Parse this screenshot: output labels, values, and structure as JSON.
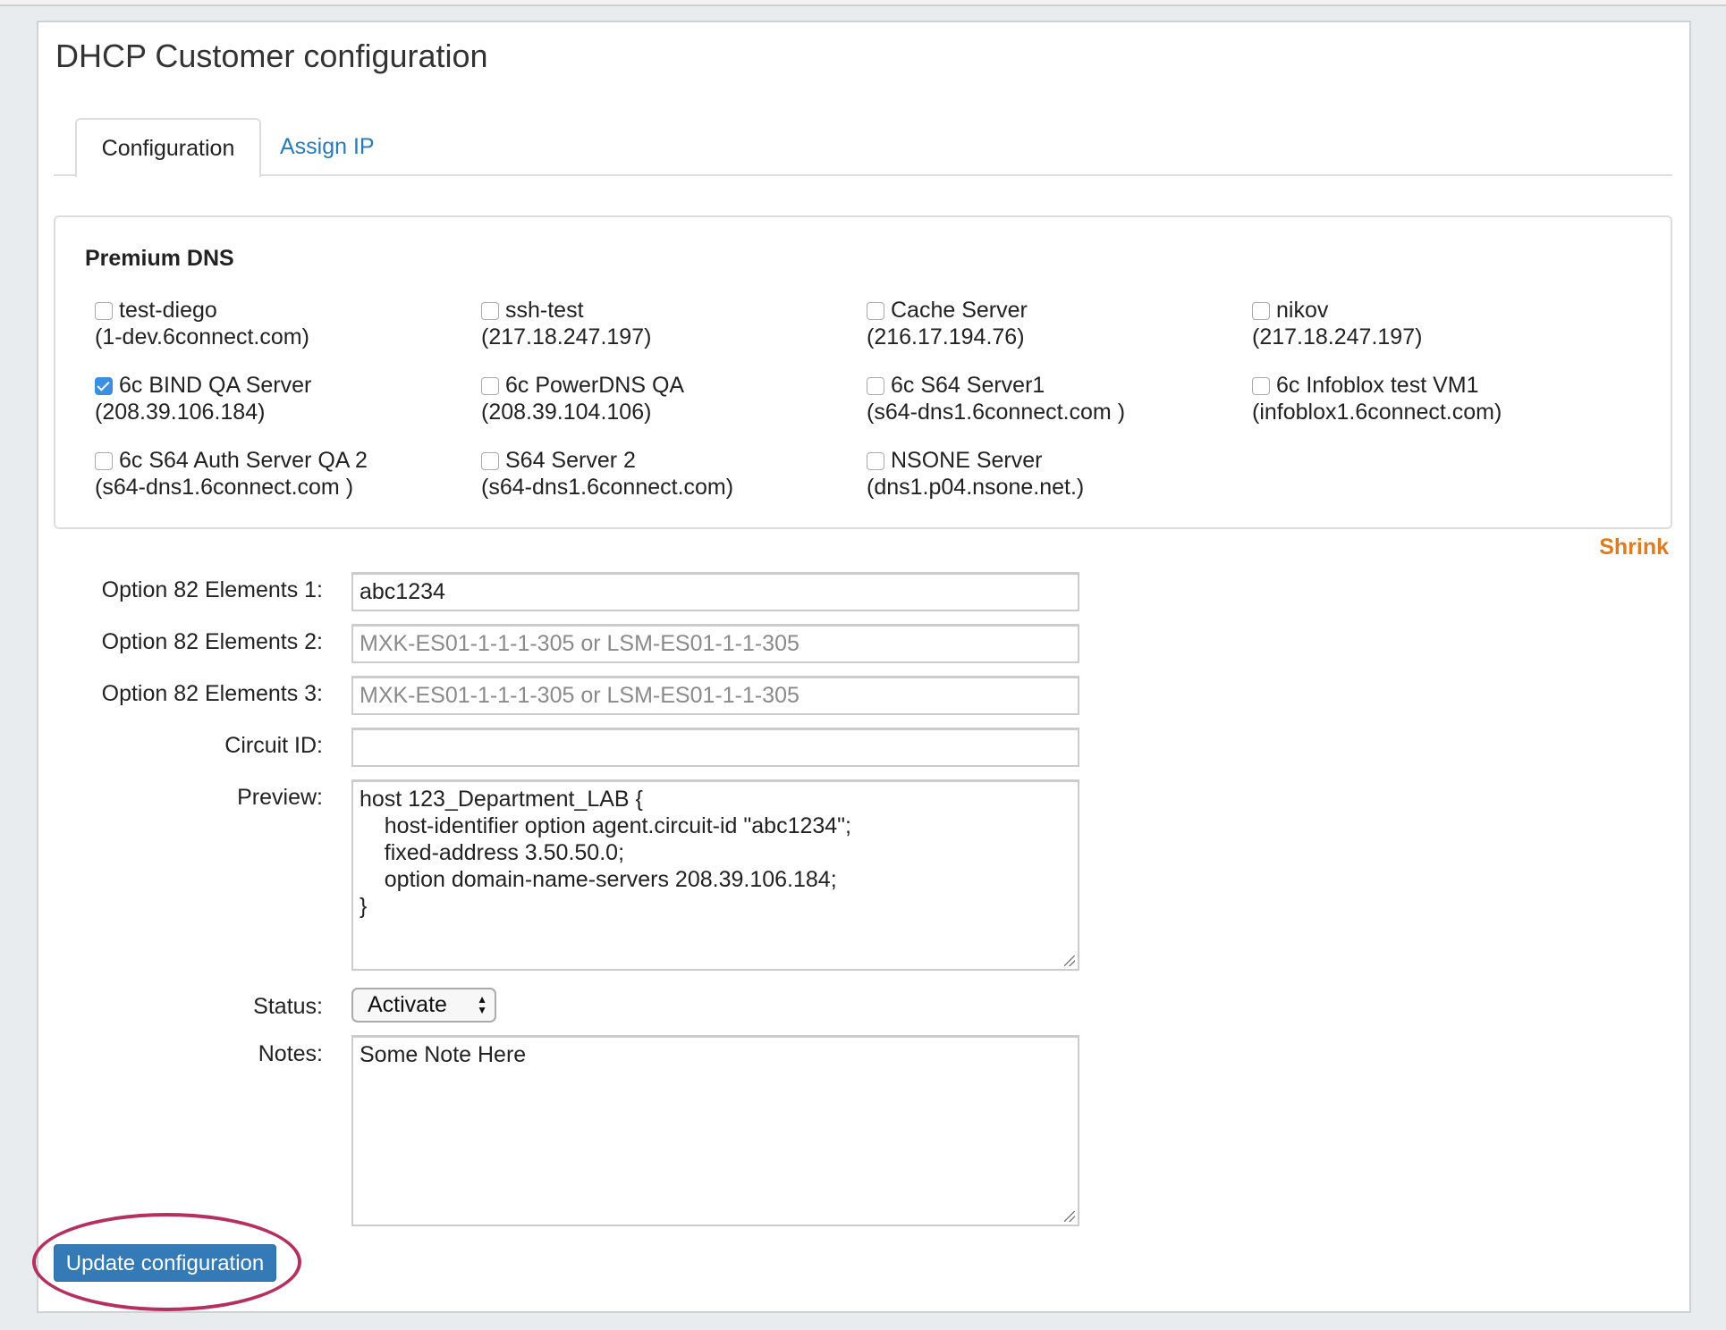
{
  "page": {
    "title": "DHCP Customer configuration"
  },
  "tabs": [
    {
      "label": "Configuration",
      "active": true
    },
    {
      "label": "Assign IP",
      "active": false
    }
  ],
  "premium_dns": {
    "title": "Premium DNS",
    "servers": [
      {
        "name": "test-diego",
        "host": "(1-dev.6connect.com)",
        "checked": false
      },
      {
        "name": "ssh-test",
        "host": "(217.18.247.197)",
        "checked": false
      },
      {
        "name": "Cache Server",
        "host": "(216.17.194.76)",
        "checked": false
      },
      {
        "name": "nikov",
        "host": "(217.18.247.197)",
        "checked": false
      },
      {
        "name": "6c BIND QA Server",
        "host": "(208.39.106.184)",
        "checked": true
      },
      {
        "name": "6c PowerDNS QA",
        "host": "(208.39.104.106)",
        "checked": false
      },
      {
        "name": "6c S64 Server1",
        "host": "(s64-dns1.6connect.com )",
        "checked": false
      },
      {
        "name": "6c Infoblox test VM1",
        "host": "(infoblox1.6connect.com)",
        "checked": false
      },
      {
        "name": "6c S64 Auth Server QA 2",
        "host": "(s64-dns1.6connect.com )",
        "checked": false
      },
      {
        "name": "S64 Server 2",
        "host": "(s64-dns1.6connect.com)",
        "checked": false
      },
      {
        "name": "NSONE Server",
        "host": "(dns1.p04.nsone.net.)",
        "checked": false
      }
    ],
    "shrink_label": "Shrink"
  },
  "form": {
    "opt82_1": {
      "label": "Option 82 Elements 1:",
      "value": "abc1234",
      "placeholder": ""
    },
    "opt82_2": {
      "label": "Option 82 Elements 2:",
      "value": "",
      "placeholder": "MXK-ES01-1-1-1-305 or LSM-ES01-1-1-305"
    },
    "opt82_3": {
      "label": "Option 82 Elements 3:",
      "value": "",
      "placeholder": "MXK-ES01-1-1-1-305 or LSM-ES01-1-1-305"
    },
    "circuit_id": {
      "label": "Circuit ID:",
      "value": ""
    },
    "preview": {
      "label": "Preview:",
      "value": "host 123_Department_LAB {\n    host-identifier option agent.circuit-id \"abc1234\";\n    fixed-address 3.50.50.0;\n    option domain-name-servers 208.39.106.184;\n}"
    },
    "status": {
      "label": "Status:",
      "value": "Activate"
    },
    "notes": {
      "label": "Notes:",
      "value": "Some Note Here"
    },
    "submit_label": "Update configuration"
  },
  "colors": {
    "link": "#2a7ab8",
    "primary_button": "#337ab7",
    "shrink": "#e07b1f",
    "highlight_ring": "#b5305f"
  }
}
